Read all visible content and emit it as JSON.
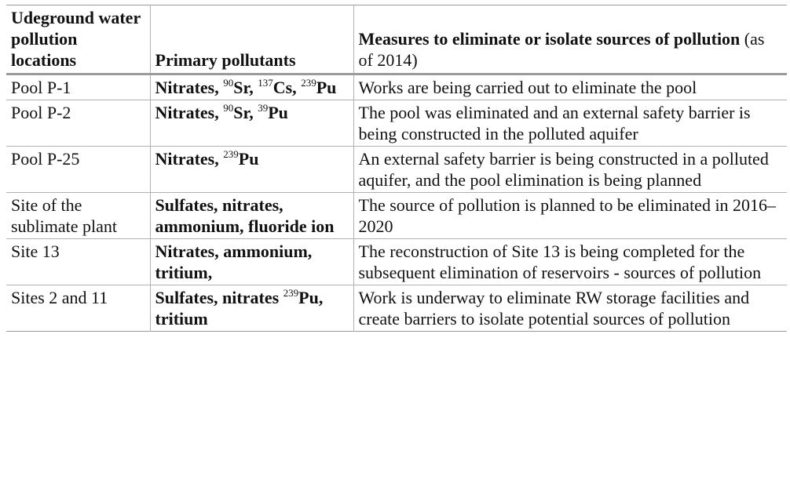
{
  "table": {
    "headers": {
      "locations": "Udeground water pollution locations",
      "pollutants": "Primary pollutants",
      "measures": "Measures to eliminate or isolate sources of pollution",
      "measures_note": "(as of 2014)"
    },
    "rows": [
      {
        "location": "Pool P-1",
        "pollutants": [
          {
            "t": "Nitrates, "
          },
          {
            "sup": "90"
          },
          {
            "t": "Sr, "
          },
          {
            "sup": "137"
          },
          {
            "t": "Cs, "
          },
          {
            "sup": "239"
          },
          {
            "t": "Pu"
          }
        ],
        "measures": "Works are being carried out to eliminate the pool"
      },
      {
        "location": "Pool P-2",
        "pollutants": [
          {
            "t": "Nitrates, "
          },
          {
            "sup": "90"
          },
          {
            "t": "Sr, "
          },
          {
            "sup": "39"
          },
          {
            "t": "Pu"
          }
        ],
        "measures": "The pool was eliminated and an external safety barrier is being constructed in the polluted aquifer"
      },
      {
        "location": "Pool P-25",
        "pollutants": [
          {
            "t": "Nitrates, "
          },
          {
            "sup": "239"
          },
          {
            "t": "Pu"
          }
        ],
        "measures": "An external safety barrier is being constructed in a polluted aquifer, and the pool elimination is being planned"
      },
      {
        "location": "Site of the sublimate plant",
        "pollutants": [
          {
            "t": "Sulfates, nitrates, ammonium, fluoride ion"
          }
        ],
        "measures": "The source of pollution is planned to be eliminated in 2016–2020"
      },
      {
        "location": "Site 13",
        "pollutants": [
          {
            "t": "Nitrates, ammonium, tritium,"
          }
        ],
        "measures": "The reconstruction of Site 13 is being completed for the subsequent elimination of reservoirs - sources of pollution"
      },
      {
        "location": "Sites 2 and 11",
        "pollutants": [
          {
            "t": "Sulfates, nitrates "
          },
          {
            "sup": "239"
          },
          {
            "t": "Pu, tritium"
          }
        ],
        "measures": "Work is underway to eliminate RW storage facilities and create barriers to isolate potential sources of pollution"
      }
    ]
  }
}
